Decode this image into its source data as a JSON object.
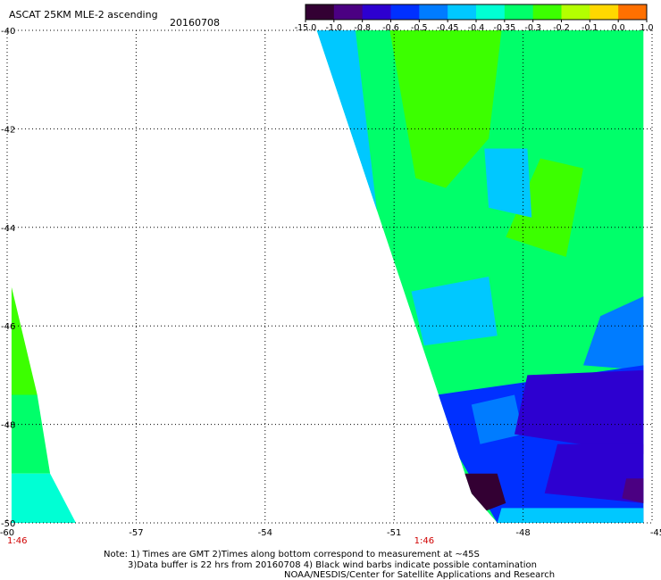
{
  "header": {
    "title": "ASCAT 25KM MLE-2 ascending",
    "date": "20160708"
  },
  "colorbar": {
    "labels": [
      "-15.0",
      "-1.0",
      "-0.8",
      "-0.6",
      "-0.5",
      "-0.45",
      "-0.4",
      "-0.35",
      "-0.3",
      "-0.2",
      "-0.1",
      "0.0",
      "1.0"
    ]
  },
  "chart_data": {
    "type": "heatmap",
    "title": "ASCAT 25KM MLE-2 ascending",
    "subtitle": "20160708",
    "xlabel": "",
    "ylabel": "",
    "x_ticks": [
      "-60",
      "-57",
      "-54",
      "-51",
      "-48",
      "-45"
    ],
    "y_ticks": [
      "-40",
      "-42",
      "-44",
      "-46",
      "-48",
      "-50"
    ],
    "xlim": [
      -60,
      -45
    ],
    "ylim": [
      -50,
      -40
    ],
    "grid": true,
    "colorscale": [
      {
        "label": "-15.0",
        "color": "#330033"
      },
      {
        "label": "-1.0",
        "color": "#4b0082"
      },
      {
        "label": "-0.8",
        "color": "#2d00d0"
      },
      {
        "label": "-0.6",
        "color": "#0030ff"
      },
      {
        "label": "-0.5",
        "color": "#007cff"
      },
      {
        "label": "-0.45",
        "color": "#00c8ff"
      },
      {
        "label": "-0.4",
        "color": "#00ffd4"
      },
      {
        "label": "-0.35",
        "color": "#00ff6a"
      },
      {
        "label": "-0.3",
        "color": "#3cff00"
      },
      {
        "label": "-0.2",
        "color": "#b4ff00"
      },
      {
        "label": "-0.1",
        "color": "#ffd800"
      },
      {
        "label": "0.0",
        "color": "#ff7000"
      },
      {
        "label": "1.0",
        "color": "#ff1000"
      }
    ],
    "swaths": [
      {
        "time_label": "1:46",
        "time_lon": -60,
        "polygon": [
          [
            -59.9,
            -45.2
          ],
          [
            -59.9,
            -50.0
          ],
          [
            -58.4,
            -50.0
          ],
          [
            -58.4,
            -49.8
          ],
          [
            -59.9,
            -45.2
          ]
        ],
        "regions": [
          {
            "polygon": [
              [
                -59.9,
                -45.2
              ],
              [
                -59.9,
                -47.4
              ],
              [
                -59.3,
                -47.4
              ]
            ],
            "value": -0.25
          },
          {
            "polygon": [
              [
                -59.9,
                -47.4
              ],
              [
                -59.9,
                -49.0
              ],
              [
                -59.0,
                -49.0
              ],
              [
                -59.3,
                -47.4
              ]
            ],
            "value": -0.32
          },
          {
            "polygon": [
              [
                -59.9,
                -49.0
              ],
              [
                -59.9,
                -50.0
              ],
              [
                -58.4,
                -50.0
              ],
              [
                -59.0,
                -49.0
              ]
            ],
            "value": -0.38
          }
        ]
      },
      {
        "time_label": "1:46",
        "time_lon": -50.3,
        "polygon": [
          [
            -52.8,
            -40.0
          ],
          [
            -45.2,
            -40.0
          ],
          [
            -45.2,
            -50.0
          ],
          [
            -48.6,
            -50.0
          ],
          [
            -49.2,
            -49.4
          ],
          [
            -52.8,
            -40.0
          ]
        ],
        "regions": [
          {
            "polygon": [
              [
                -52.8,
                -40.0
              ],
              [
                -45.2,
                -40.0
              ],
              [
                -45.2,
                -50.0
              ],
              [
                -48.6,
                -50.0
              ],
              [
                -49.2,
                -49.4
              ]
            ],
            "value": -0.33
          },
          {
            "polygon": [
              [
                -51.1,
                -40.0
              ],
              [
                -48.5,
                -40.0
              ],
              [
                -48.8,
                -42.2
              ],
              [
                -49.8,
                -43.2
              ],
              [
                -50.5,
                -43.0
              ]
            ],
            "value": -0.25
          },
          {
            "polygon": [
              [
                -47.6,
                -42.6
              ],
              [
                -46.6,
                -42.8
              ],
              [
                -47.0,
                -44.6
              ],
              [
                -48.4,
                -44.2
              ]
            ],
            "value": -0.27
          },
          {
            "polygon": [
              [
                -52.8,
                -40.0
              ],
              [
                -51.9,
                -40.0
              ],
              [
                -51.3,
                -44.4
              ],
              [
                -50.6,
                -46.6
              ],
              [
                -51.0,
                -46.8
              ]
            ],
            "value": -0.42
          },
          {
            "polygon": [
              [
                -48.9,
                -42.4
              ],
              [
                -47.9,
                -42.4
              ],
              [
                -47.8,
                -43.8
              ],
              [
                -48.8,
                -43.6
              ]
            ],
            "value": -0.43
          },
          {
            "polygon": [
              [
                -50.6,
                -45.3
              ],
              [
                -48.8,
                -45.0
              ],
              [
                -48.6,
                -46.2
              ],
              [
                -50.3,
                -46.4
              ]
            ],
            "value": -0.42
          },
          {
            "polygon": [
              [
                -45.2,
                -45.4
              ],
              [
                -46.2,
                -45.8
              ],
              [
                -46.6,
                -46.8
              ],
              [
                -45.2,
                -46.9
              ]
            ],
            "value": -0.47
          },
          {
            "polygon": [
              [
                -50.8,
                -47.5
              ],
              [
                -45.2,
                -46.8
              ],
              [
                -45.2,
                -50.0
              ],
              [
                -48.6,
                -50.0
              ],
              [
                -49.8,
                -48.2
              ]
            ],
            "value": -0.55
          },
          {
            "polygon": [
              [
                -49.2,
                -47.6
              ],
              [
                -48.2,
                -47.4
              ],
              [
                -48.0,
                -48.2
              ],
              [
                -49.0,
                -48.4
              ]
            ],
            "value": -0.48
          },
          {
            "polygon": [
              [
                -47.9,
                -47.0
              ],
              [
                -45.2,
                -46.9
              ],
              [
                -45.2,
                -48.6
              ],
              [
                -48.2,
                -48.2
              ]
            ],
            "value": -0.62
          },
          {
            "polygon": [
              [
                -47.2,
                -48.4
              ],
              [
                -45.2,
                -48.4
              ],
              [
                -45.2,
                -49.6
              ],
              [
                -47.5,
                -49.4
              ]
            ],
            "value": -0.7
          },
          {
            "polygon": [
              [
                -49.4,
                -49.0
              ],
              [
                -48.6,
                -49.0
              ],
              [
                -48.4,
                -49.6
              ],
              [
                -49.0,
                -49.8
              ]
            ],
            "value": -1.2
          },
          {
            "polygon": [
              [
                -45.6,
                -49.1
              ],
              [
                -45.2,
                -49.1
              ],
              [
                -45.2,
                -49.6
              ],
              [
                -45.7,
                -49.5
              ]
            ],
            "value": -0.85
          },
          {
            "polygon": [
              [
                -48.5,
                -49.7
              ],
              [
                -45.2,
                -49.7
              ],
              [
                -45.2,
                -50.0
              ],
              [
                -48.6,
                -50.0
              ]
            ],
            "value": -0.44
          }
        ]
      }
    ]
  },
  "footer": {
    "line1": "Note: 1) Times are GMT 2)Times along bottom correspond to measurement at ~45S",
    "line2": "3)Data buffer is 22 hrs from 20160708 4) Black wind barbs indicate possible contamination",
    "line3": "NOAA/NESDIS/Center for Satellite Applications and Research"
  }
}
